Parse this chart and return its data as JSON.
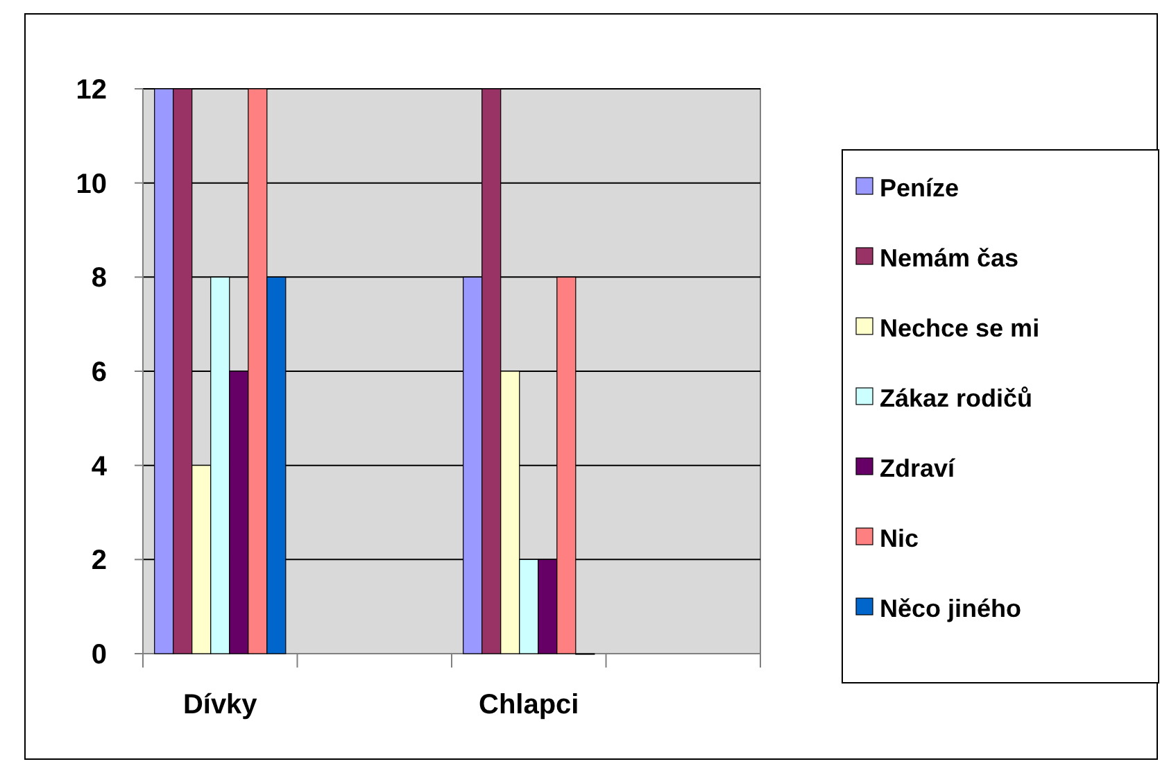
{
  "chart_data": {
    "type": "bar",
    "categories": [
      "Dívky",
      null,
      "Chlapci",
      null
    ],
    "series": [
      {
        "name": "Peníze",
        "color": "#9999ff",
        "values": [
          12,
          null,
          8,
          null
        ]
      },
      {
        "name": "Nemám čas",
        "color": "#993366",
        "values": [
          12,
          null,
          12,
          null
        ]
      },
      {
        "name": "Nechce se mi",
        "color": "#ffffcc",
        "values": [
          4,
          null,
          6,
          null
        ]
      },
      {
        "name": "Zákaz rodičů",
        "color": "#ccffff",
        "values": [
          8,
          null,
          2,
          null
        ]
      },
      {
        "name": "Zdraví",
        "color": "#660066",
        "values": [
          6,
          null,
          2,
          null
        ]
      },
      {
        "name": "Nic",
        "color": "#ff8080",
        "values": [
          12,
          null,
          8,
          null
        ]
      },
      {
        "name": "Něco jiného",
        "color": "#0066cc",
        "values": [
          8,
          null,
          0,
          null
        ]
      }
    ],
    "ylim": [
      0,
      12
    ],
    "yticks": [
      0,
      2,
      4,
      6,
      8,
      10,
      12
    ],
    "grid": "y",
    "legend": "right"
  }
}
